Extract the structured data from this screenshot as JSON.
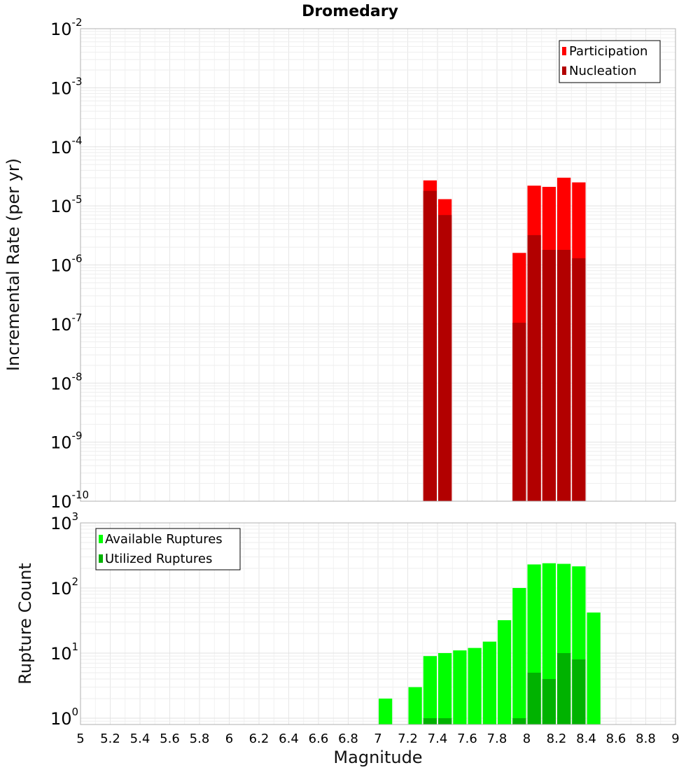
{
  "chart_data": [
    {
      "type": "bar",
      "title": "Dromedary",
      "xlabel": "Magnitude",
      "ylabel": "Incremental Rate (per yr)",
      "yscale": "log",
      "xlim": [
        5,
        9
      ],
      "ylim": [
        1e-10,
        0.01
      ],
      "bar_width": 0.1,
      "legend_position": "top-right",
      "series": [
        {
          "name": "Participation",
          "color": "#ff0000",
          "x": [
            7.35,
            7.45,
            7.95,
            8.05,
            8.15,
            8.25,
            8.35
          ],
          "values": [
            2.7e-05,
            1.3e-05,
            1.6e-06,
            2.2e-05,
            2.1e-05,
            3e-05,
            2.5e-05
          ]
        },
        {
          "name": "Nucleation",
          "color": "#b20000",
          "x": [
            7.35,
            7.45,
            7.95,
            8.05,
            8.15,
            8.25,
            8.35
          ],
          "values": [
            1.8e-05,
            7e-06,
            1.05e-07,
            3.2e-06,
            1.8e-06,
            1.8e-06,
            1.3e-06
          ]
        }
      ],
      "y_ticks": [
        {
          "base": "10",
          "exp": "-10"
        },
        {
          "base": "10",
          "exp": "-9"
        },
        {
          "base": "10",
          "exp": "-8"
        },
        {
          "base": "10",
          "exp": "-7"
        },
        {
          "base": "10",
          "exp": "-6"
        },
        {
          "base": "10",
          "exp": "-5"
        },
        {
          "base": "10",
          "exp": "-4"
        },
        {
          "base": "10",
          "exp": "-3"
        },
        {
          "base": "10",
          "exp": "-2"
        }
      ]
    },
    {
      "type": "bar",
      "ylabel": "Rupture Count",
      "yscale": "log",
      "xlim": [
        5,
        9
      ],
      "ylim": [
        0.8,
        1000
      ],
      "bar_width": 0.1,
      "legend_position": "top-left",
      "series": [
        {
          "name": "Available Ruptures",
          "color": "#00ff00",
          "x": [
            7.05,
            7.25,
            7.35,
            7.45,
            7.55,
            7.65,
            7.75,
            7.85,
            7.95,
            8.05,
            8.15,
            8.25,
            8.35,
            8.45
          ],
          "values": [
            2,
            3,
            9,
            10,
            11,
            12,
            15,
            32,
            100,
            230,
            240,
            235,
            215,
            42
          ]
        },
        {
          "name": "Utilized Ruptures",
          "color": "#00b200",
          "x": [
            7.35,
            7.45,
            7.95,
            8.05,
            8.15,
            8.25,
            8.35
          ],
          "values": [
            1,
            1,
            1,
            5,
            4,
            10,
            8
          ]
        }
      ],
      "y_ticks": [
        {
          "base": "10",
          "exp": "0"
        },
        {
          "base": "10",
          "exp": "1"
        },
        {
          "base": "10",
          "exp": "2"
        },
        {
          "base": "10",
          "exp": "3"
        }
      ]
    }
  ],
  "x_ticks": [
    "5",
    "5.2",
    "5.4",
    "5.6",
    "5.8",
    "6",
    "6.2",
    "6.4",
    "6.6",
    "6.8",
    "7",
    "7.2",
    "7.4",
    "7.6",
    "7.8",
    "8",
    "8.2",
    "8.4",
    "8.6",
    "8.8",
    "9"
  ]
}
